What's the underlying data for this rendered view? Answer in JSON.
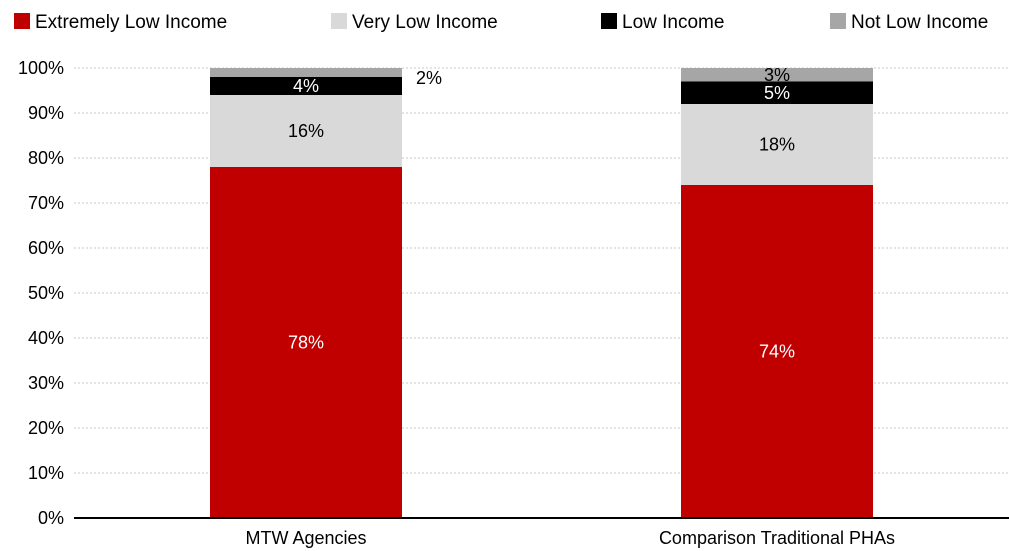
{
  "chart_data": {
    "type": "bar",
    "stacked": true,
    "categories": [
      "MTW Agencies",
      "Comparison Traditional PHAs"
    ],
    "series": [
      {
        "name": "Extremely Low Income",
        "values": [
          78,
          74
        ],
        "labels": [
          "78%",
          "74%"
        ],
        "color": "#c00000",
        "label_color": "#ffffff"
      },
      {
        "name": "Very Low Income",
        "values": [
          16,
          18
        ],
        "labels": [
          "16%",
          "18%"
        ],
        "color": "#d9d9d9",
        "label_color": "#000000"
      },
      {
        "name": "Low Income",
        "values": [
          4,
          5
        ],
        "labels": [
          "4%",
          "5%"
        ],
        "color": "#000000",
        "label_color": "#ffffff"
      },
      {
        "name": "Not Low Income",
        "values": [
          2,
          3
        ],
        "labels": [
          "2%",
          "3%"
        ],
        "color": "#a6a6a6",
        "label_color": "#000000"
      }
    ],
    "ylim": [
      0,
      100
    ],
    "yticks": [
      "0%",
      "10%",
      "20%",
      "30%",
      "40%",
      "50%",
      "60%",
      "70%",
      "80%",
      "90%",
      "100%"
    ],
    "grid": true,
    "legend_position": "top",
    "title": "",
    "xlabel": "",
    "ylabel": ""
  }
}
